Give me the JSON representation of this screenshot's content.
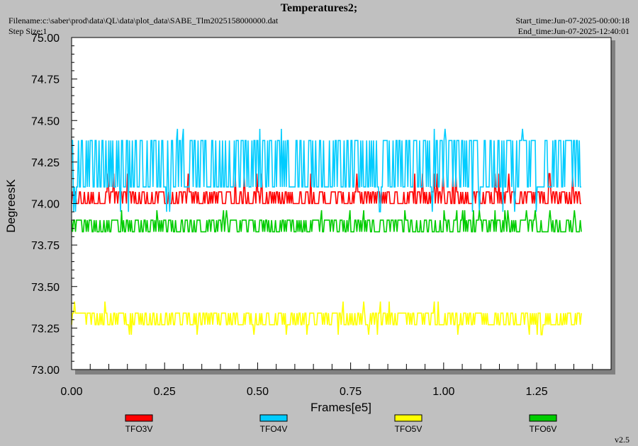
{
  "header": {
    "title": "Temperatures2;",
    "filename": "Filename:c:\\saber\\prod\\data\\QL\\data\\plot_data\\SABE_Tlm2025158000000.dat",
    "step_size": "Step Size:1",
    "start_time": "Start_time:Jun-07-2025-00:00:18",
    "end_time": "End_time:Jun-07-2025-12:40:01"
  },
  "footer": {
    "version": "v2.5"
  },
  "chart_data": {
    "type": "line",
    "title": "Temperatures2;",
    "xlabel": "Frames[e5]",
    "ylabel": "DegreesK",
    "xlim": [
      0.0,
      1.45
    ],
    "ylim": [
      73.0,
      75.0
    ],
    "x_ticks": [
      "0.00",
      "0.25",
      "0.50",
      "0.75",
      "1.00",
      "1.25"
    ],
    "y_ticks": [
      "73.00",
      "73.25",
      "73.50",
      "73.75",
      "74.00",
      "74.25",
      "74.50",
      "74.75",
      "75.00"
    ],
    "x_range": [
      0.0,
      1.37
    ],
    "legend_position": "bottom",
    "series": [
      {
        "name": "TFO3V",
        "color": "#ff0000",
        "levels": [
          74.0,
          74.07
        ],
        "spikes": [
          74.18
        ]
      },
      {
        "name": "TFO4V",
        "color": "#00ccff",
        "levels": [
          74.1,
          74.38
        ],
        "spikes": [
          74.45,
          73.95
        ]
      },
      {
        "name": "TFO5V",
        "color": "#ffff00",
        "levels": [
          73.27,
          73.34
        ],
        "spikes": [
          73.41,
          73.21
        ]
      },
      {
        "name": "TFO6V",
        "color": "#00cc00",
        "levels": [
          73.83,
          73.9
        ],
        "spikes": [
          73.96
        ]
      }
    ]
  }
}
